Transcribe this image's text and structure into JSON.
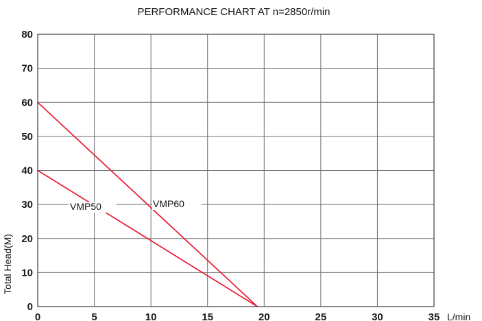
{
  "chart_data": {
    "type": "line",
    "title": "PERFORMANCE CHART AT n=2850r/min",
    "xlabel": "L/min",
    "ylabel": "Total Head(M)",
    "xlim": [
      0,
      35
    ],
    "ylim": [
      0,
      80
    ],
    "x_ticks": [
      "0",
      "5",
      "10",
      "15",
      "20",
      "25",
      "30",
      "35"
    ],
    "y_ticks": [
      "0",
      "10",
      "20",
      "30",
      "40",
      "50",
      "60",
      "70",
      "80"
    ],
    "grid": true,
    "series_color": "#e8223c",
    "series": [
      {
        "name": "VMP50",
        "x": [
          0,
          19.4
        ],
        "y": [
          40,
          0
        ]
      },
      {
        "name": "VMP60",
        "x": [
          0,
          19.4
        ],
        "y": [
          60,
          0
        ]
      }
    ]
  }
}
